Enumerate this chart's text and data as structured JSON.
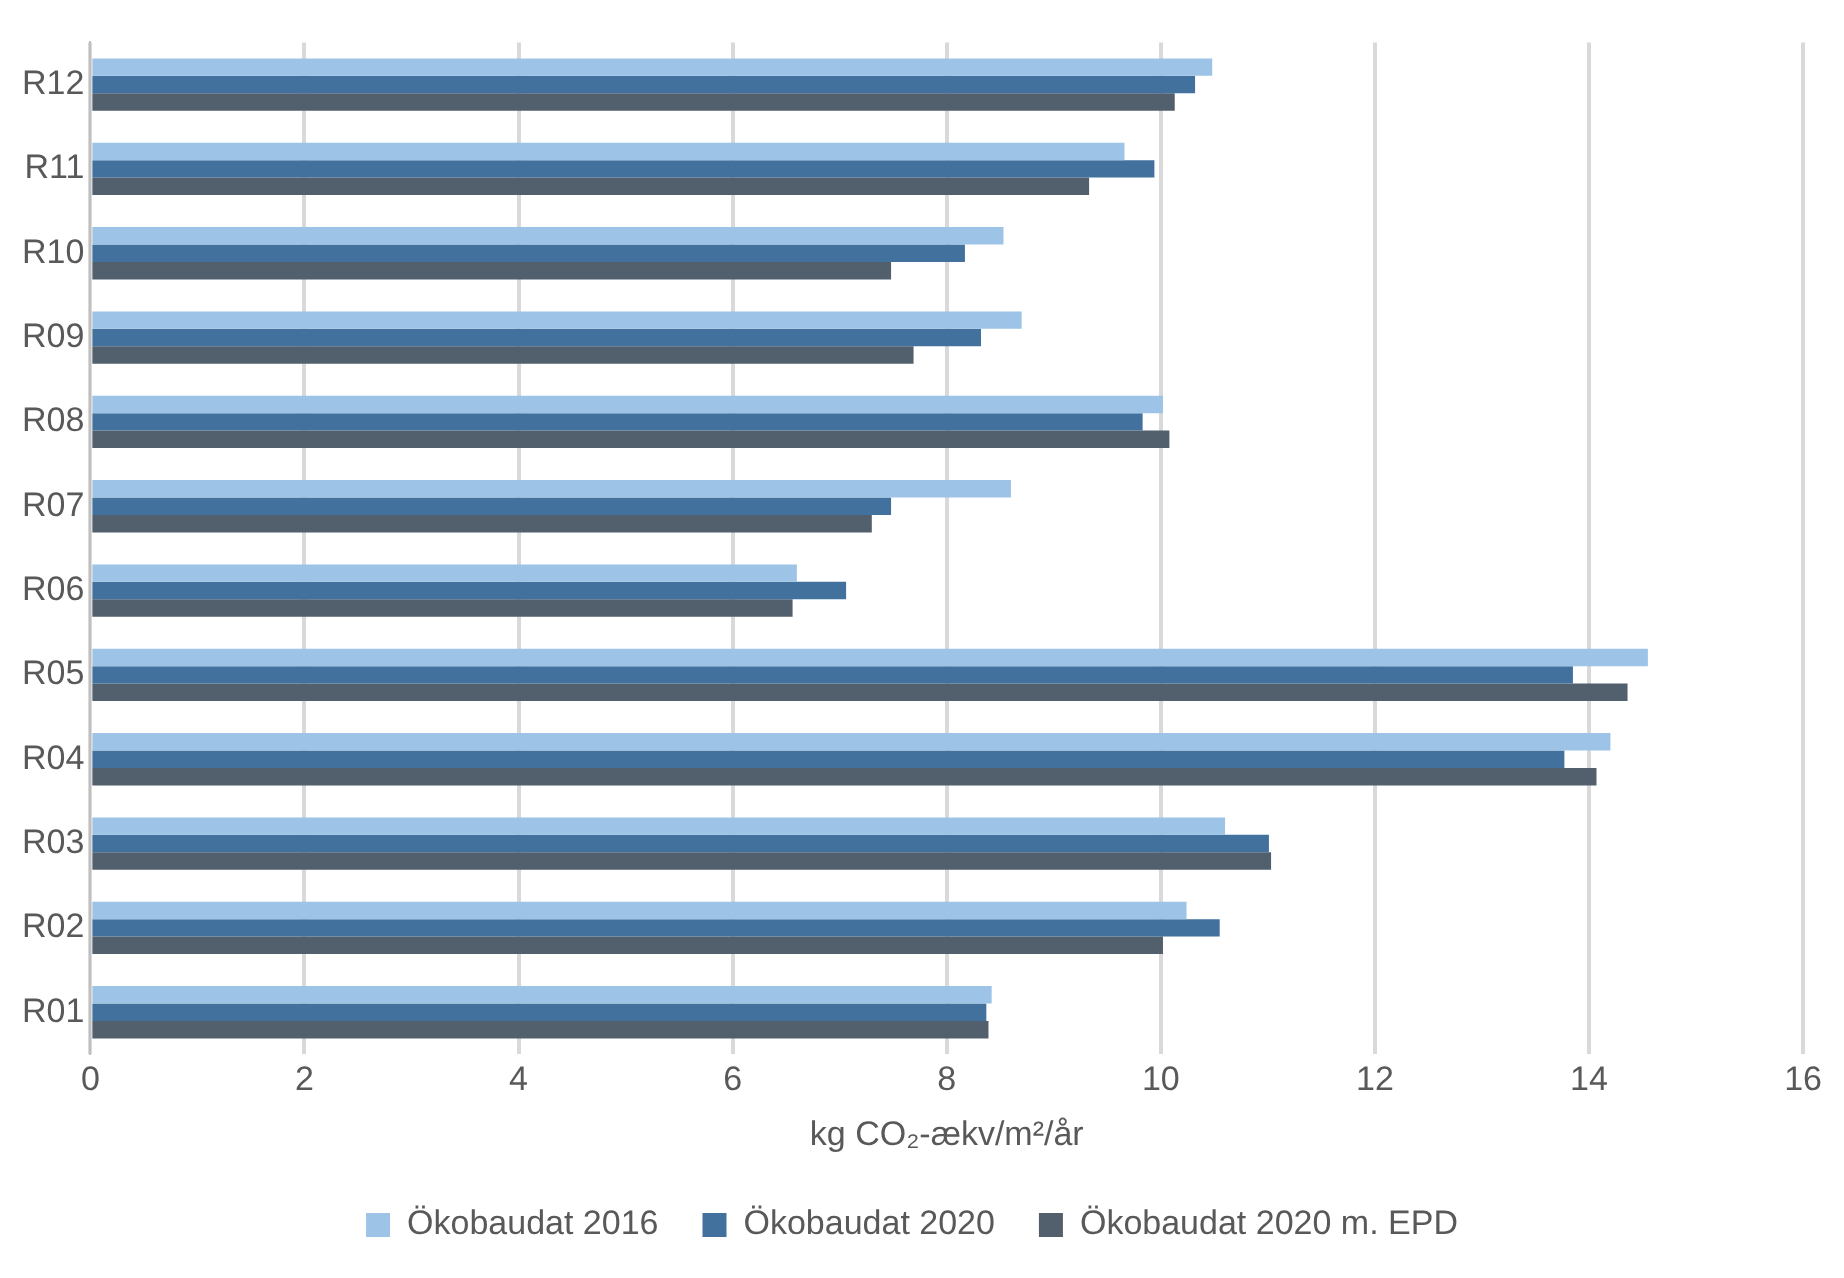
{
  "chart_data": {
    "type": "bar",
    "orientation": "horizontal",
    "xlabel": "kg CO₂-ækv/m²/år",
    "categories": [
      "R12",
      "R11",
      "R10",
      "R09",
      "R08",
      "R07",
      "R06",
      "R05",
      "R04",
      "R03",
      "R02",
      "R01"
    ],
    "series": [
      {
        "name": "Ökobaudat 2016",
        "color": "#9dc3e6",
        "values": [
          10.48,
          9.66,
          8.53,
          8.7,
          10.02,
          8.6,
          6.6,
          14.55,
          14.2,
          10.6,
          10.24,
          8.42
        ]
      },
      {
        "name": "Ökobaudat 2020",
        "color": "#41719c",
        "values": [
          10.32,
          9.94,
          8.17,
          8.32,
          9.83,
          7.48,
          7.06,
          13.85,
          13.77,
          11.01,
          10.55,
          8.37
        ]
      },
      {
        "name": "Ökobaudat 2020 m. EPD",
        "color": "#525f6c",
        "values": [
          10.13,
          9.33,
          7.48,
          7.69,
          10.08,
          7.3,
          6.56,
          14.36,
          14.07,
          11.03,
          10.02,
          8.39
        ]
      }
    ],
    "xlim": [
      0,
      16
    ],
    "xticks": [
      0,
      2,
      4,
      6,
      8,
      10,
      12,
      14,
      16
    ],
    "grid": "x",
    "legend": "bottom"
  }
}
